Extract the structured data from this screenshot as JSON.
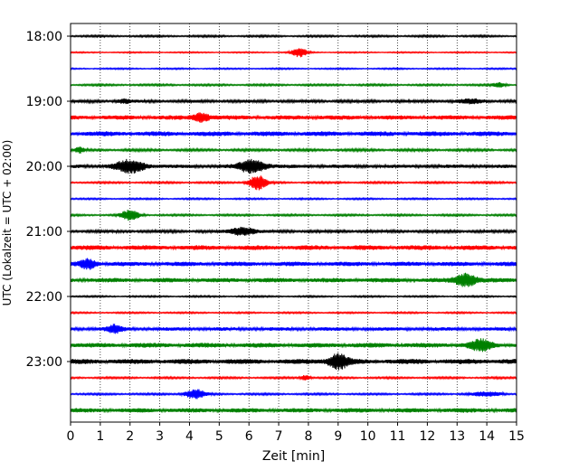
{
  "chart_data": {
    "type": "line",
    "title": "",
    "xlabel": "Zeit  [min]",
    "ylabel": "UTC (Lokalzeit = UTC + 02:00)",
    "xlim": [
      0,
      15
    ],
    "x_ticks": [
      "0",
      "1",
      "2",
      "3",
      "4",
      "5",
      "6",
      "7",
      "8",
      "9",
      "10",
      "11",
      "12",
      "13",
      "14",
      "15"
    ],
    "y_ticks": [
      "18:00",
      "19:00",
      "20:00",
      "21:00",
      "22:00",
      "23:00"
    ],
    "grid": "vertical dotted at each minute",
    "colors": [
      "#000000",
      "#ff0000",
      "#0000ff",
      "#008000"
    ],
    "trace_interval_minutes": 15,
    "series": [
      {
        "name": "18:00",
        "color": "#000000",
        "noise": 0.12,
        "events": []
      },
      {
        "name": "18:15",
        "color": "#ff0000",
        "noise": 0.08,
        "events": [
          {
            "t": 7.7,
            "amp": 0.55,
            "dur": 0.5
          }
        ]
      },
      {
        "name": "18:30",
        "color": "#0000ff",
        "noise": 0.09,
        "events": []
      },
      {
        "name": "18:45",
        "color": "#008000",
        "noise": 0.12,
        "events": [
          {
            "t": 14.4,
            "amp": 0.25,
            "dur": 0.4
          }
        ]
      },
      {
        "name": "19:00",
        "color": "#000000",
        "noise": 0.18,
        "events": [
          {
            "t": 1.8,
            "amp": 0.2,
            "dur": 0.5
          },
          {
            "t": 13.5,
            "amp": 0.22,
            "dur": 0.8
          }
        ]
      },
      {
        "name": "19:15",
        "color": "#ff0000",
        "noise": 0.28,
        "events": [
          {
            "t": 4.4,
            "amp": 0.55,
            "dur": 0.5
          }
        ]
      },
      {
        "name": "19:30",
        "color": "#0000ff",
        "noise": 0.3,
        "events": []
      },
      {
        "name": "19:45",
        "color": "#008000",
        "noise": 0.15,
        "events": [
          {
            "t": 0.3,
            "amp": 0.3,
            "dur": 0.3
          }
        ]
      },
      {
        "name": "20:00",
        "color": "#000000",
        "noise": 0.22,
        "events": [
          {
            "t": 2.0,
            "amp": 0.75,
            "dur": 1.0
          },
          {
            "t": 6.1,
            "amp": 0.8,
            "dur": 0.9
          }
        ]
      },
      {
        "name": "20:15",
        "color": "#ff0000",
        "noise": 0.12,
        "events": [
          {
            "t": 6.3,
            "amp": 0.85,
            "dur": 0.6
          }
        ]
      },
      {
        "name": "20:30",
        "color": "#0000ff",
        "noise": 0.1,
        "events": []
      },
      {
        "name": "20:45",
        "color": "#008000",
        "noise": 0.12,
        "events": [
          {
            "t": 2.0,
            "amp": 0.6,
            "dur": 0.6
          }
        ]
      },
      {
        "name": "21:00",
        "color": "#000000",
        "noise": 0.18,
        "events": [
          {
            "t": 5.8,
            "amp": 0.5,
            "dur": 0.8
          }
        ]
      },
      {
        "name": "21:15",
        "color": "#ff0000",
        "noise": 0.3,
        "events": []
      },
      {
        "name": "21:30",
        "color": "#0000ff",
        "noise": 0.28,
        "events": [
          {
            "t": 0.6,
            "amp": 0.55,
            "dur": 0.5
          }
        ]
      },
      {
        "name": "21:45",
        "color": "#008000",
        "noise": 0.28,
        "events": [
          {
            "t": 13.3,
            "amp": 0.8,
            "dur": 0.7
          }
        ]
      },
      {
        "name": "22:00",
        "color": "#000000",
        "noise": 0.1,
        "events": []
      },
      {
        "name": "22:15",
        "color": "#ff0000",
        "noise": 0.1,
        "events": []
      },
      {
        "name": "22:30",
        "color": "#0000ff",
        "noise": 0.22,
        "events": [
          {
            "t": 1.5,
            "amp": 0.45,
            "dur": 0.5
          }
        ]
      },
      {
        "name": "22:45",
        "color": "#008000",
        "noise": 0.3,
        "events": [
          {
            "t": 13.8,
            "amp": 0.6,
            "dur": 0.7
          }
        ]
      },
      {
        "name": "23:00",
        "color": "#000000",
        "noise": 0.32,
        "events": [
          {
            "t": 9.0,
            "amp": 0.8,
            "dur": 0.7
          }
        ]
      },
      {
        "name": "23:15",
        "color": "#ff0000",
        "noise": 0.12,
        "events": [
          {
            "t": 7.9,
            "amp": 0.3,
            "dur": 0.3
          }
        ]
      },
      {
        "name": "23:30",
        "color": "#0000ff",
        "noise": 0.12,
        "events": [
          {
            "t": 4.2,
            "amp": 0.55,
            "dur": 0.7
          },
          {
            "t": 14.0,
            "amp": 0.25,
            "dur": 1.0
          }
        ]
      },
      {
        "name": "23:45",
        "color": "#008000",
        "noise": 0.28,
        "events": []
      }
    ]
  }
}
